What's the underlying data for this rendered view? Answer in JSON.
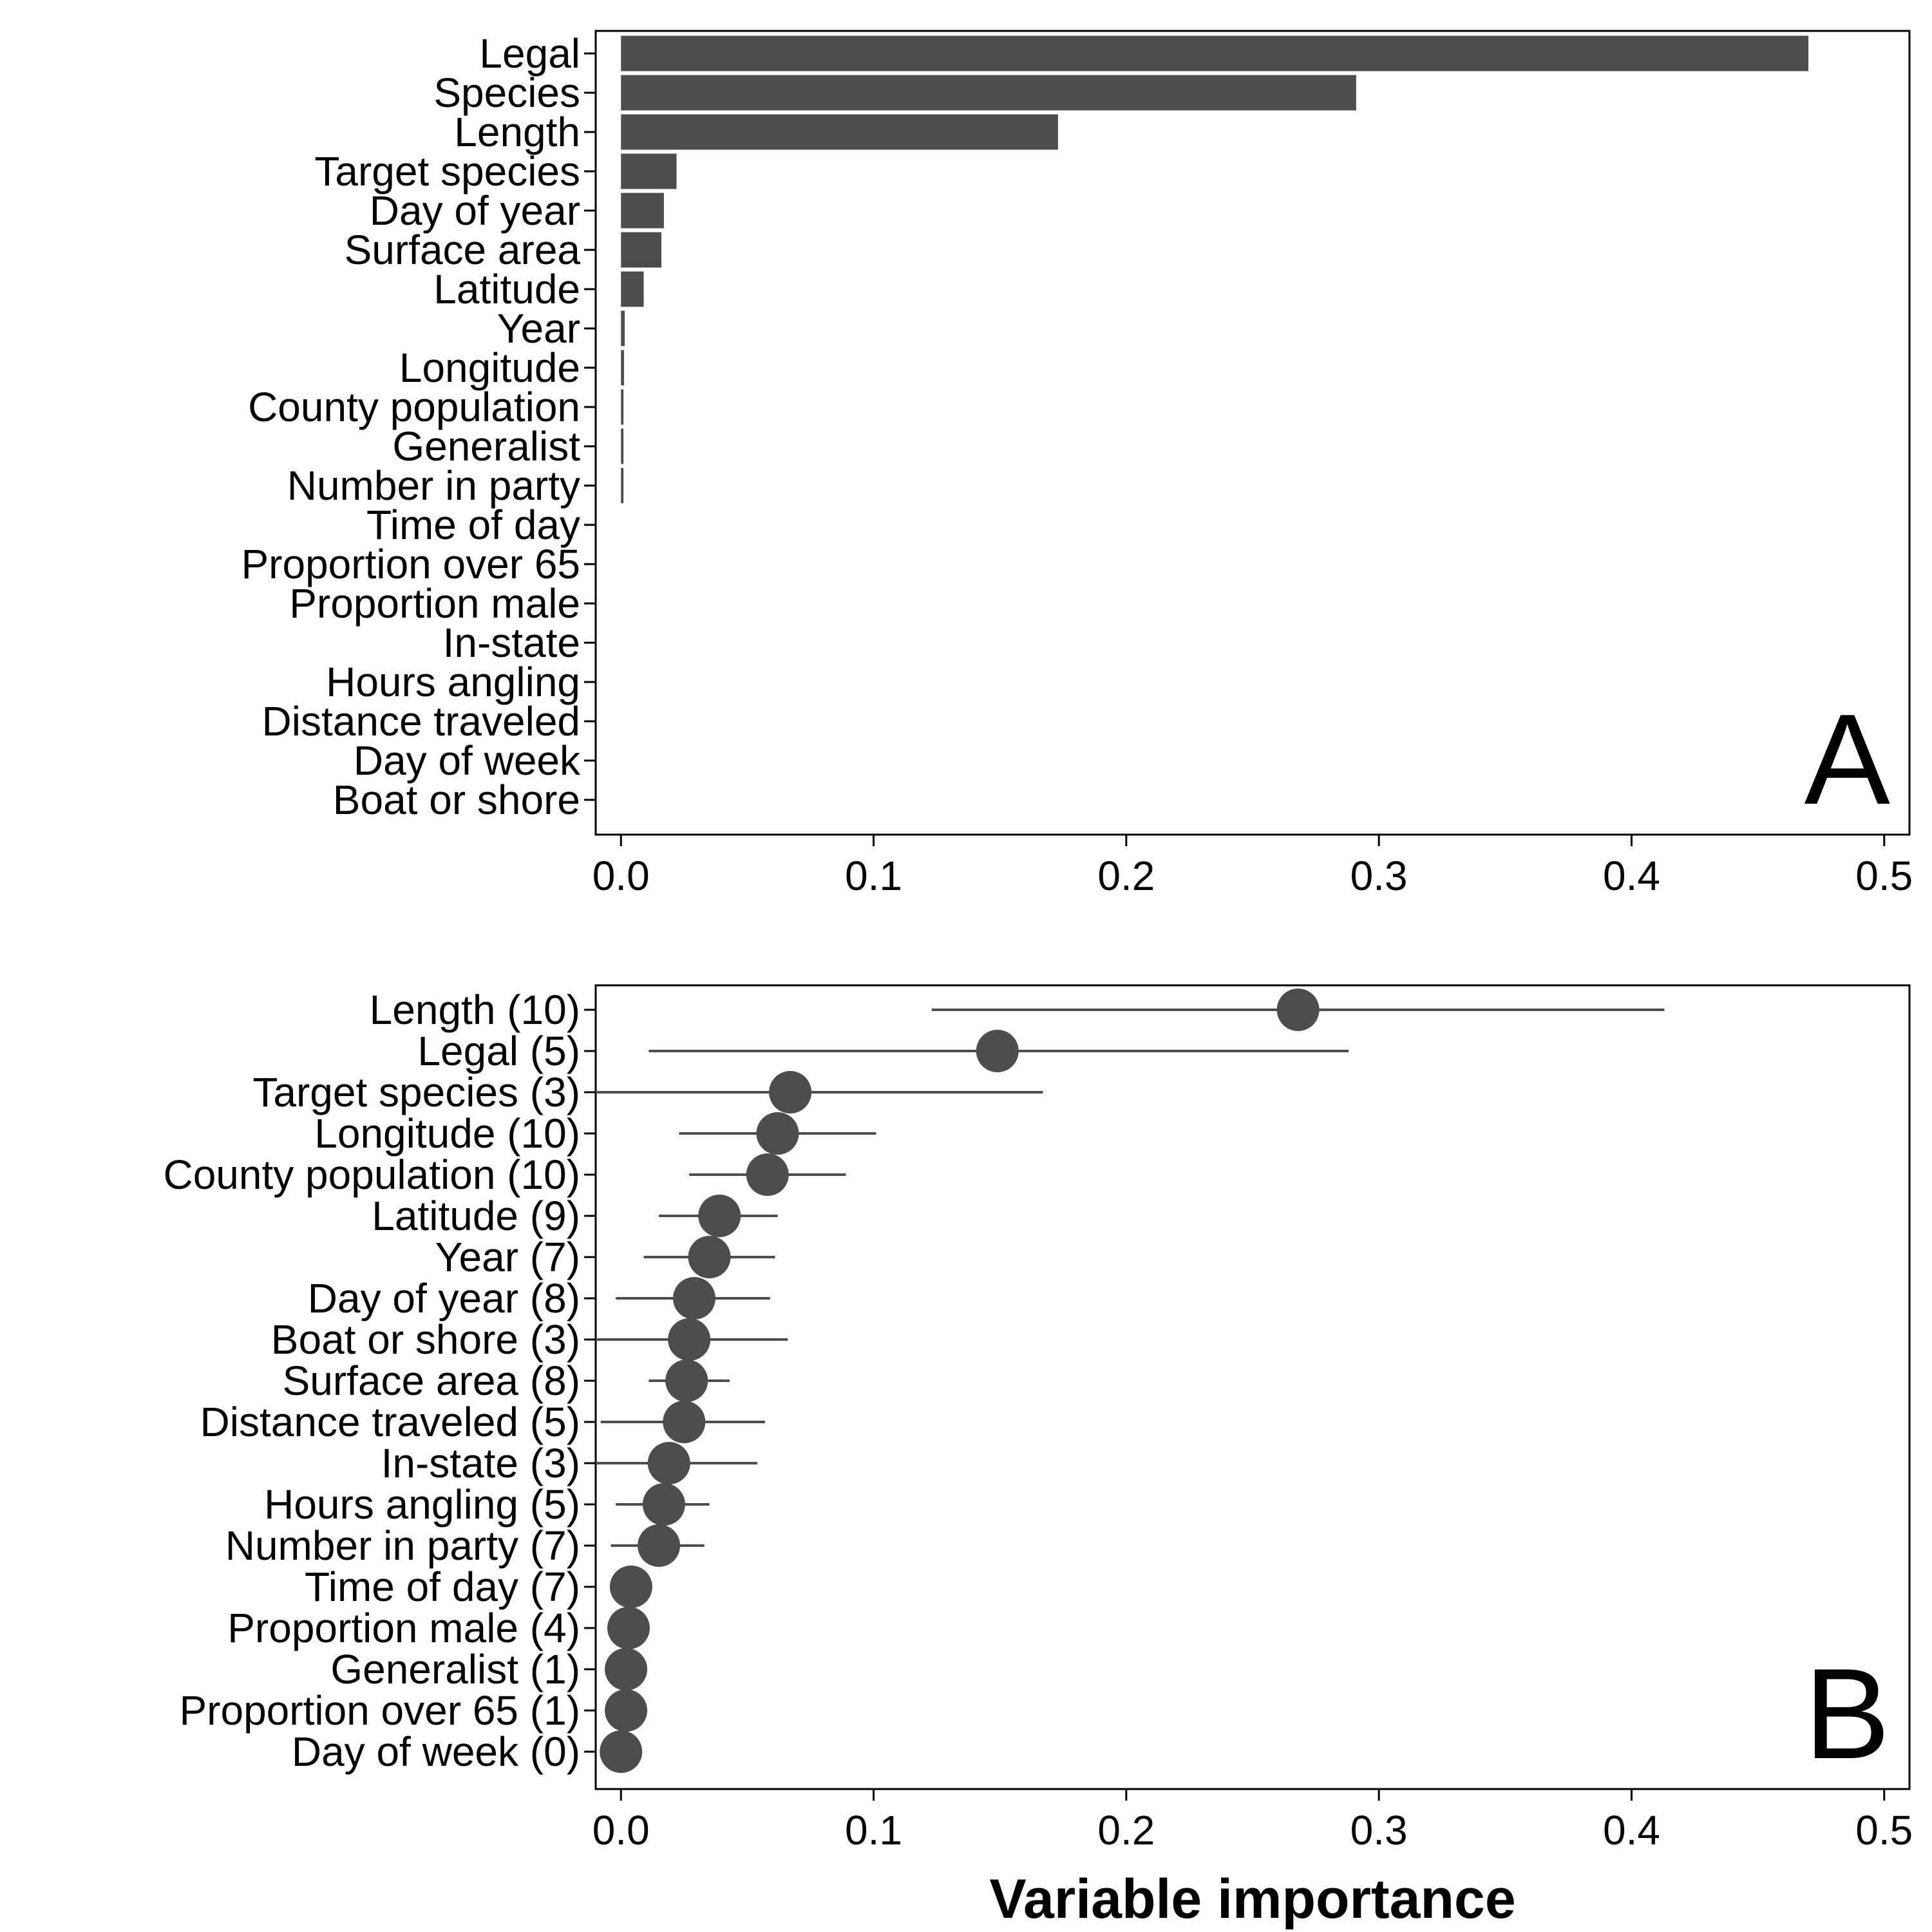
{
  "colors": {
    "mark": "#4d4d4d",
    "axis": "#000000",
    "background": "#ffffff"
  },
  "chart_data": [
    {
      "type": "bar",
      "orientation": "horizontal",
      "panel_label": "A",
      "xlim": [
        -0.01,
        0.51
      ],
      "ticks": [
        0.0,
        0.1,
        0.2,
        0.3,
        0.4,
        0.5
      ],
      "tick_labels": [
        "0.0",
        "0.1",
        "0.2",
        "0.3",
        "0.4",
        "0.5"
      ],
      "categories": [
        "Legal",
        "Species",
        "Length",
        "Target species",
        "Day of year",
        "Surface area",
        "Latitude",
        "Year",
        "Longitude",
        "County population",
        "Generalist",
        "Number in party",
        "Time of day",
        "Proportion over 65",
        "Proportion male",
        "In-state",
        "Hours angling",
        "Distance traveled",
        "Day of week",
        "Boat or shore"
      ],
      "values": [
        0.47,
        0.291,
        0.173,
        0.022,
        0.017,
        0.016,
        0.009,
        0.0015,
        0.0012,
        0.001,
        0.001,
        0.001,
        0,
        0,
        0,
        0,
        0,
        0,
        0,
        0
      ]
    },
    {
      "type": "scatter",
      "subtype": "point-range",
      "panel_label": "B",
      "xlim": [
        -0.01,
        0.51
      ],
      "ticks": [
        0.0,
        0.1,
        0.2,
        0.3,
        0.4,
        0.5
      ],
      "tick_labels": [
        "0.0",
        "0.1",
        "0.2",
        "0.3",
        "0.4",
        "0.5"
      ],
      "xlabel": "Variable importance",
      "categories": [
        "Length (10)",
        "Legal (5)",
        "Target species (3)",
        "Longitude (10)",
        "County population (10)",
        "Latitude (9)",
        "Year (7)",
        "Day of year (8)",
        "Boat or shore (3)",
        "Surface area (8)",
        "Distance traveled (5)",
        "In-state (3)",
        "Hours angling (5)",
        "Number in party (7)",
        "Time of day (7)",
        "Proportion male (4)",
        "Generalist (1)",
        "Proportion over 65 (1)",
        "Day of week (0)"
      ],
      "values": [
        0.268,
        0.149,
        0.067,
        0.062,
        0.058,
        0.039,
        0.035,
        0.029,
        0.027,
        0.026,
        0.025,
        0.019,
        0.017,
        0.015,
        0.004,
        0.003,
        0.002,
        0.002,
        0.0
      ],
      "lower": [
        0.123,
        0.011,
        -0.01,
        0.023,
        0.027,
        0.015,
        0.009,
        -0.002,
        -0.01,
        0.011,
        -0.008,
        -0.01,
        -0.002,
        -0.004,
        0.004,
        0.003,
        0.002,
        0.002,
        0.0
      ],
      "upper": [
        0.413,
        0.288,
        0.167,
        0.101,
        0.089,
        0.062,
        0.061,
        0.059,
        0.066,
        0.043,
        0.057,
        0.054,
        0.035,
        0.033,
        0.004,
        0.003,
        0.002,
        0.002,
        0.0
      ]
    }
  ]
}
